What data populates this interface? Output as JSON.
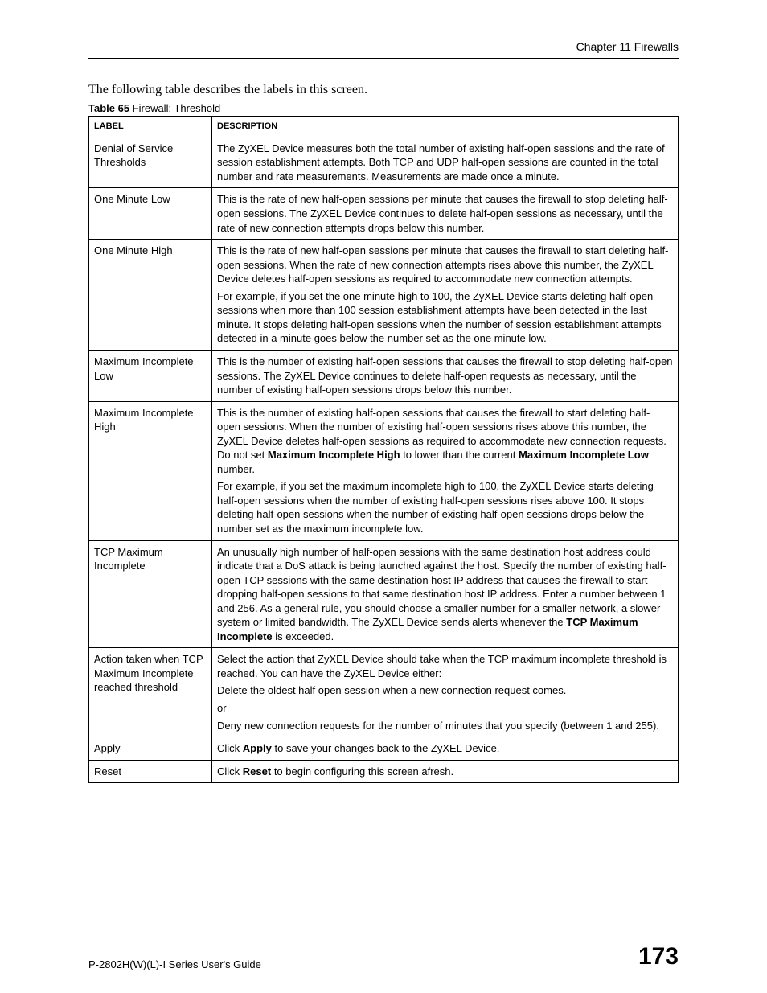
{
  "header": {
    "chapter": "Chapter 11 Firewalls"
  },
  "intro": "The following table describes the labels in this screen.",
  "caption": {
    "prefix": "Table 65",
    "title": "   Firewall: Threshold"
  },
  "table": {
    "headers": {
      "label": "LABEL",
      "description": "DESCRIPTION"
    }
  },
  "rows": {
    "r0": {
      "label": "Denial of Service Thresholds",
      "p1": "The ZyXEL Device measures both the total number of existing half-open sessions and the rate of session establishment attempts. Both TCP and UDP half-open sessions are counted in the total number and rate measurements. Measurements are made once a minute."
    },
    "r1": {
      "label": "One Minute Low",
      "p1": "This is the rate of new half-open sessions per minute that causes the firewall to stop deleting half-open sessions. The ZyXEL Device continues to delete half-open sessions as necessary, until the rate of new connection attempts drops below this number."
    },
    "r2": {
      "label": "One Minute High",
      "p1": "This is the rate of new half-open sessions per minute that causes the firewall to start deleting half-open sessions. When the rate of new connection attempts rises above this number, the ZyXEL Device deletes half-open sessions as required to accommodate new connection attempts.",
      "p2": "For example, if you set the one minute high to 100, the ZyXEL Device starts deleting half-open sessions when more than 100 session establishment attempts have been detected in the last minute. It stops deleting half-open sessions when the number of session establishment attempts detected in a minute goes below the number set as the one minute low."
    },
    "r3": {
      "label": "Maximum Incomplete Low",
      "p1": "This is the number of existing half-open sessions that causes the firewall to stop deleting half-open sessions. The ZyXEL Device continues to delete half-open requests as necessary, until the number of existing half-open sessions drops below this number."
    },
    "r4": {
      "label": "Maximum Incomplete High",
      "p1a": "This is the number of existing half-open sessions that causes the firewall to start deleting half-open sessions. When the number of existing half-open sessions rises above this number, the ZyXEL Device deletes half-open sessions as required to accommodate new connection requests. Do not set ",
      "p1b": "Maximum Incomplete High",
      "p1c": " to lower than the current ",
      "p1d": "Maximum Incomplete Low",
      "p1e": " number.",
      "p2": "For example, if you set the maximum incomplete high to 100, the ZyXEL Device starts deleting half-open sessions when the number of existing half-open sessions rises above 100. It stops deleting half-open sessions when the number of existing half-open sessions drops below the number set as the maximum incomplete low."
    },
    "r5": {
      "label": "TCP Maximum Incomplete",
      "p1a": "An unusually high number of half-open sessions with the same destination host address could indicate that a DoS attack is being launched against the host. Specify the number of existing half-open TCP sessions with the same destination host IP address that causes the firewall to start dropping half-open sessions to that same destination host IP address. Enter a number between 1 and 256. As a general rule, you should choose a smaller number for a smaller network, a slower system or limited bandwidth. The ZyXEL Device sends alerts whenever the ",
      "p1b": "TCP Maximum Incomplete",
      "p1c": " is exceeded."
    },
    "r6": {
      "label": "Action taken when TCP Maximum Incomplete reached threshold",
      "p1": "Select the action that ZyXEL Device should take when the TCP maximum incomplete threshold is reached. You can have the ZyXEL Device either:",
      "p2": "Delete the oldest half open session when a new connection request comes.",
      "p3": "or",
      "p4": "Deny new connection requests for the number of minutes that you specify (between 1 and 255)."
    },
    "r7": {
      "label": "Apply",
      "p1a": "Click ",
      "p1b": "Apply",
      "p1c": " to save your changes back to the ZyXEL Device."
    },
    "r8": {
      "label": "Reset",
      "p1a": "Click ",
      "p1b": "Reset",
      "p1c": " to begin configuring this screen afresh."
    }
  },
  "footer": {
    "guide": "P-2802H(W)(L)-I Series User's Guide",
    "page": "173"
  }
}
